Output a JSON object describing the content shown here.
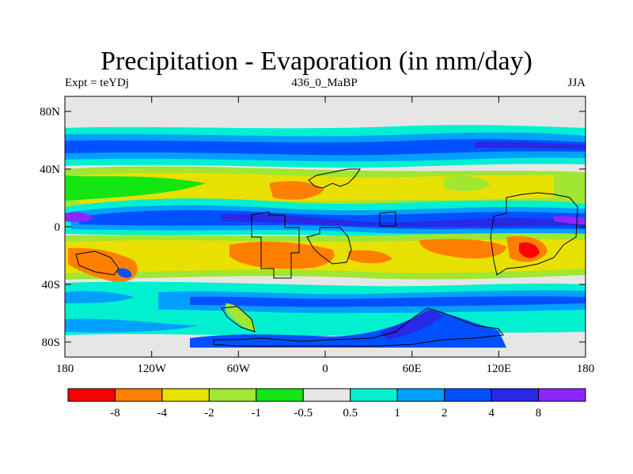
{
  "title": "Precipitation - Evaporation (in mm/day)",
  "subtitle_left": "Expt = teYDj",
  "subtitle_center": "436_0_MaBP",
  "subtitle_right": "JJA",
  "map": {
    "lon_range": [
      -180,
      180
    ],
    "lat_range": [
      -90,
      90
    ],
    "x_ticks": [
      "180",
      "120W",
      "60W",
      "0",
      "60E",
      "120E",
      "180"
    ],
    "y_ticks": [
      "80N",
      "40N",
      "0",
      "40S",
      "80S"
    ]
  },
  "colorbar": {
    "colors": [
      "#ff0000",
      "#ff8000",
      "#e8e000",
      "#a0e632",
      "#14e614",
      "#e6e6e6",
      "#00f0d0",
      "#00a0ff",
      "#0050ff",
      "#2828e6",
      "#8c28ff"
    ],
    "labels": [
      "-8",
      "-4",
      "-2",
      "-1",
      "-0.5",
      "0.5",
      "1",
      "2",
      "4",
      "8"
    ]
  }
}
